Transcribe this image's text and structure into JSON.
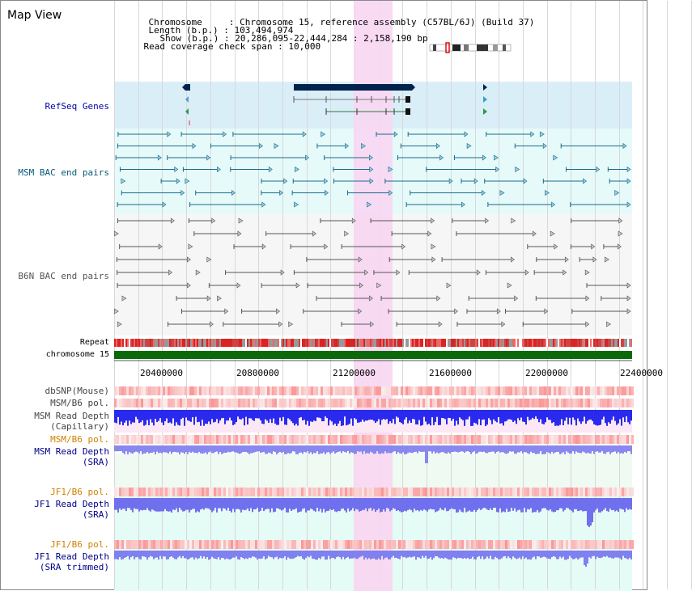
{
  "header": {
    "title": "Map View",
    "chromosome_label": "Chromosome",
    "chromosome_value": "Chromosome 15, reference assembly (C57BL/6J) (Build 37)",
    "length_label": "Length (b.p.)",
    "length_value": "103,494,974",
    "show_label": "Show (b.p.)",
    "show_value": "20,286,095-22,444,284 : 2,158,190 bp",
    "coverage_label": "Read coverage check span",
    "coverage_value": "10,000"
  },
  "tracks": {
    "refseq": "RefSeq Genes",
    "msm_bac": "MSM BAC end pairs",
    "b6n_bac": "B6N BAC end pairs",
    "repeat": "Repeat",
    "chromosome": "chromosome 15",
    "dbsnp": "dbSNP(Mouse)",
    "msm_b6_pol_1": "MSM/B6 pol.",
    "msm_read_depth_cap_1": "MSM Read Depth",
    "msm_read_depth_cap_2": "(Capillary)",
    "msm_b6_pol_2": "MSM/B6 pol.",
    "msm_read_depth_sra_1": "MSM Read Depth",
    "msm_read_depth_sra_2": "(SRA)",
    "jf1_b6_pol_1": "JF1/B6 pol.",
    "jf1_read_depth_sra_1": "JF1 Read Depth",
    "jf1_read_depth_sra_2": "(SRA)",
    "jf1_b6_pol_2": "JF1/B6 pol.",
    "jf1_read_depth_trim_1": "JF1 Read Depth",
    "jf1_read_depth_trim_2": "(SRA trimmed)"
  },
  "axis": {
    "ticks": [
      "20400000",
      "20800000",
      "21200000",
      "21600000",
      "22000000",
      "22400000"
    ]
  },
  "colors": {
    "refseq_bg": "#daeef8",
    "msm_bg": "#e6fafa",
    "b6n_bg": "#f5f5f5",
    "highlight": "#f8dcf4",
    "chromosome_bar": "#0a6a0a",
    "msm_label": "#0a5a7a",
    "b6n_label": "#555555",
    "refseq_label": "#0000aa",
    "orange_label": "#d08000",
    "navy_label": "#000088",
    "depth_blue": "#2a2aee",
    "depth_light": "#8888ee"
  }
}
